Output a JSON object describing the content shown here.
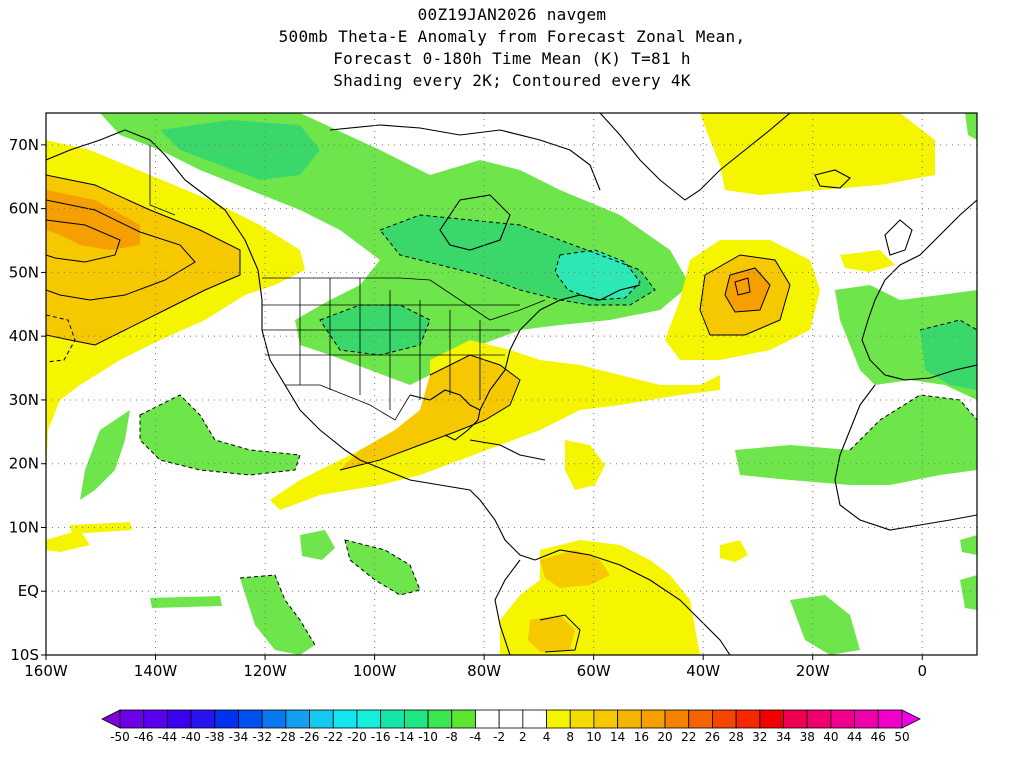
{
  "title": {
    "line1": "00Z19JAN2026 navgem",
    "line2": "500mb Theta-E Anomaly from Forecast Zonal Mean,",
    "line3": "Forecast 0-180h Time Mean (K) T=81 h",
    "line4": "Shading every 2K; Contoured every 4K"
  },
  "map": {
    "lon_range": [
      -160,
      10
    ],
    "lat_range": [
      -10,
      75
    ],
    "lat_ticks": [
      {
        "value": 70,
        "label": "70N"
      },
      {
        "value": 60,
        "label": "60N"
      },
      {
        "value": 50,
        "label": "50N"
      },
      {
        "value": 40,
        "label": "40N"
      },
      {
        "value": 30,
        "label": "30N"
      },
      {
        "value": 20,
        "label": "20N"
      },
      {
        "value": 10,
        "label": "10N"
      },
      {
        "value": 0,
        "label": "EQ"
      },
      {
        "value": -10,
        "label": "10S"
      }
    ],
    "lon_ticks": [
      {
        "value": -160,
        "label": "160W"
      },
      {
        "value": -140,
        "label": "140W"
      },
      {
        "value": -120,
        "label": "120W"
      },
      {
        "value": -100,
        "label": "100W"
      },
      {
        "value": -80,
        "label": "80W"
      },
      {
        "value": -60,
        "label": "60W"
      },
      {
        "value": -40,
        "label": "40W"
      },
      {
        "value": -20,
        "label": "20W"
      },
      {
        "value": 0,
        "label": "0"
      }
    ],
    "colors": {
      "warm_light": "#f5f500",
      "warm_mid": "#f5c800",
      "warm_strong": "#f5a000",
      "cool_light": "#6ee64b",
      "cool_mid": "#3ad86a",
      "cool_strong": "#2de8b4",
      "coast": "#000000"
    }
  },
  "colorbar": {
    "labels": [
      "-50",
      "-46",
      "-44",
      "-40",
      "-38",
      "-34",
      "-32",
      "-28",
      "-26",
      "-22",
      "-20",
      "-16",
      "-14",
      "-10",
      "-8",
      "-4",
      "-2",
      "2",
      "4",
      "8",
      "10",
      "14",
      "16",
      "20",
      "22",
      "26",
      "28",
      "32",
      "34",
      "38",
      "40",
      "44",
      "46",
      "50"
    ],
    "colors": [
      "#8200dc",
      "#6e00e6",
      "#5a00f0",
      "#3c00f0",
      "#2814f0",
      "#0032f0",
      "#0050f0",
      "#0a78f0",
      "#149ff0",
      "#14c8f0",
      "#14e6f0",
      "#14f0dc",
      "#14e6aa",
      "#1ee682",
      "#3ce650",
      "#5ae632",
      "#ffffff",
      "#ffffff",
      "#ffffff",
      "#f5f500",
      "#f5dc00",
      "#f5c800",
      "#f5b400",
      "#f5a000",
      "#f58200",
      "#f56400",
      "#f54600",
      "#f52800",
      "#f00000",
      "#f00050",
      "#f0006e",
      "#f0008c",
      "#f000aa",
      "#f000c8",
      "#f000e6"
    ]
  }
}
